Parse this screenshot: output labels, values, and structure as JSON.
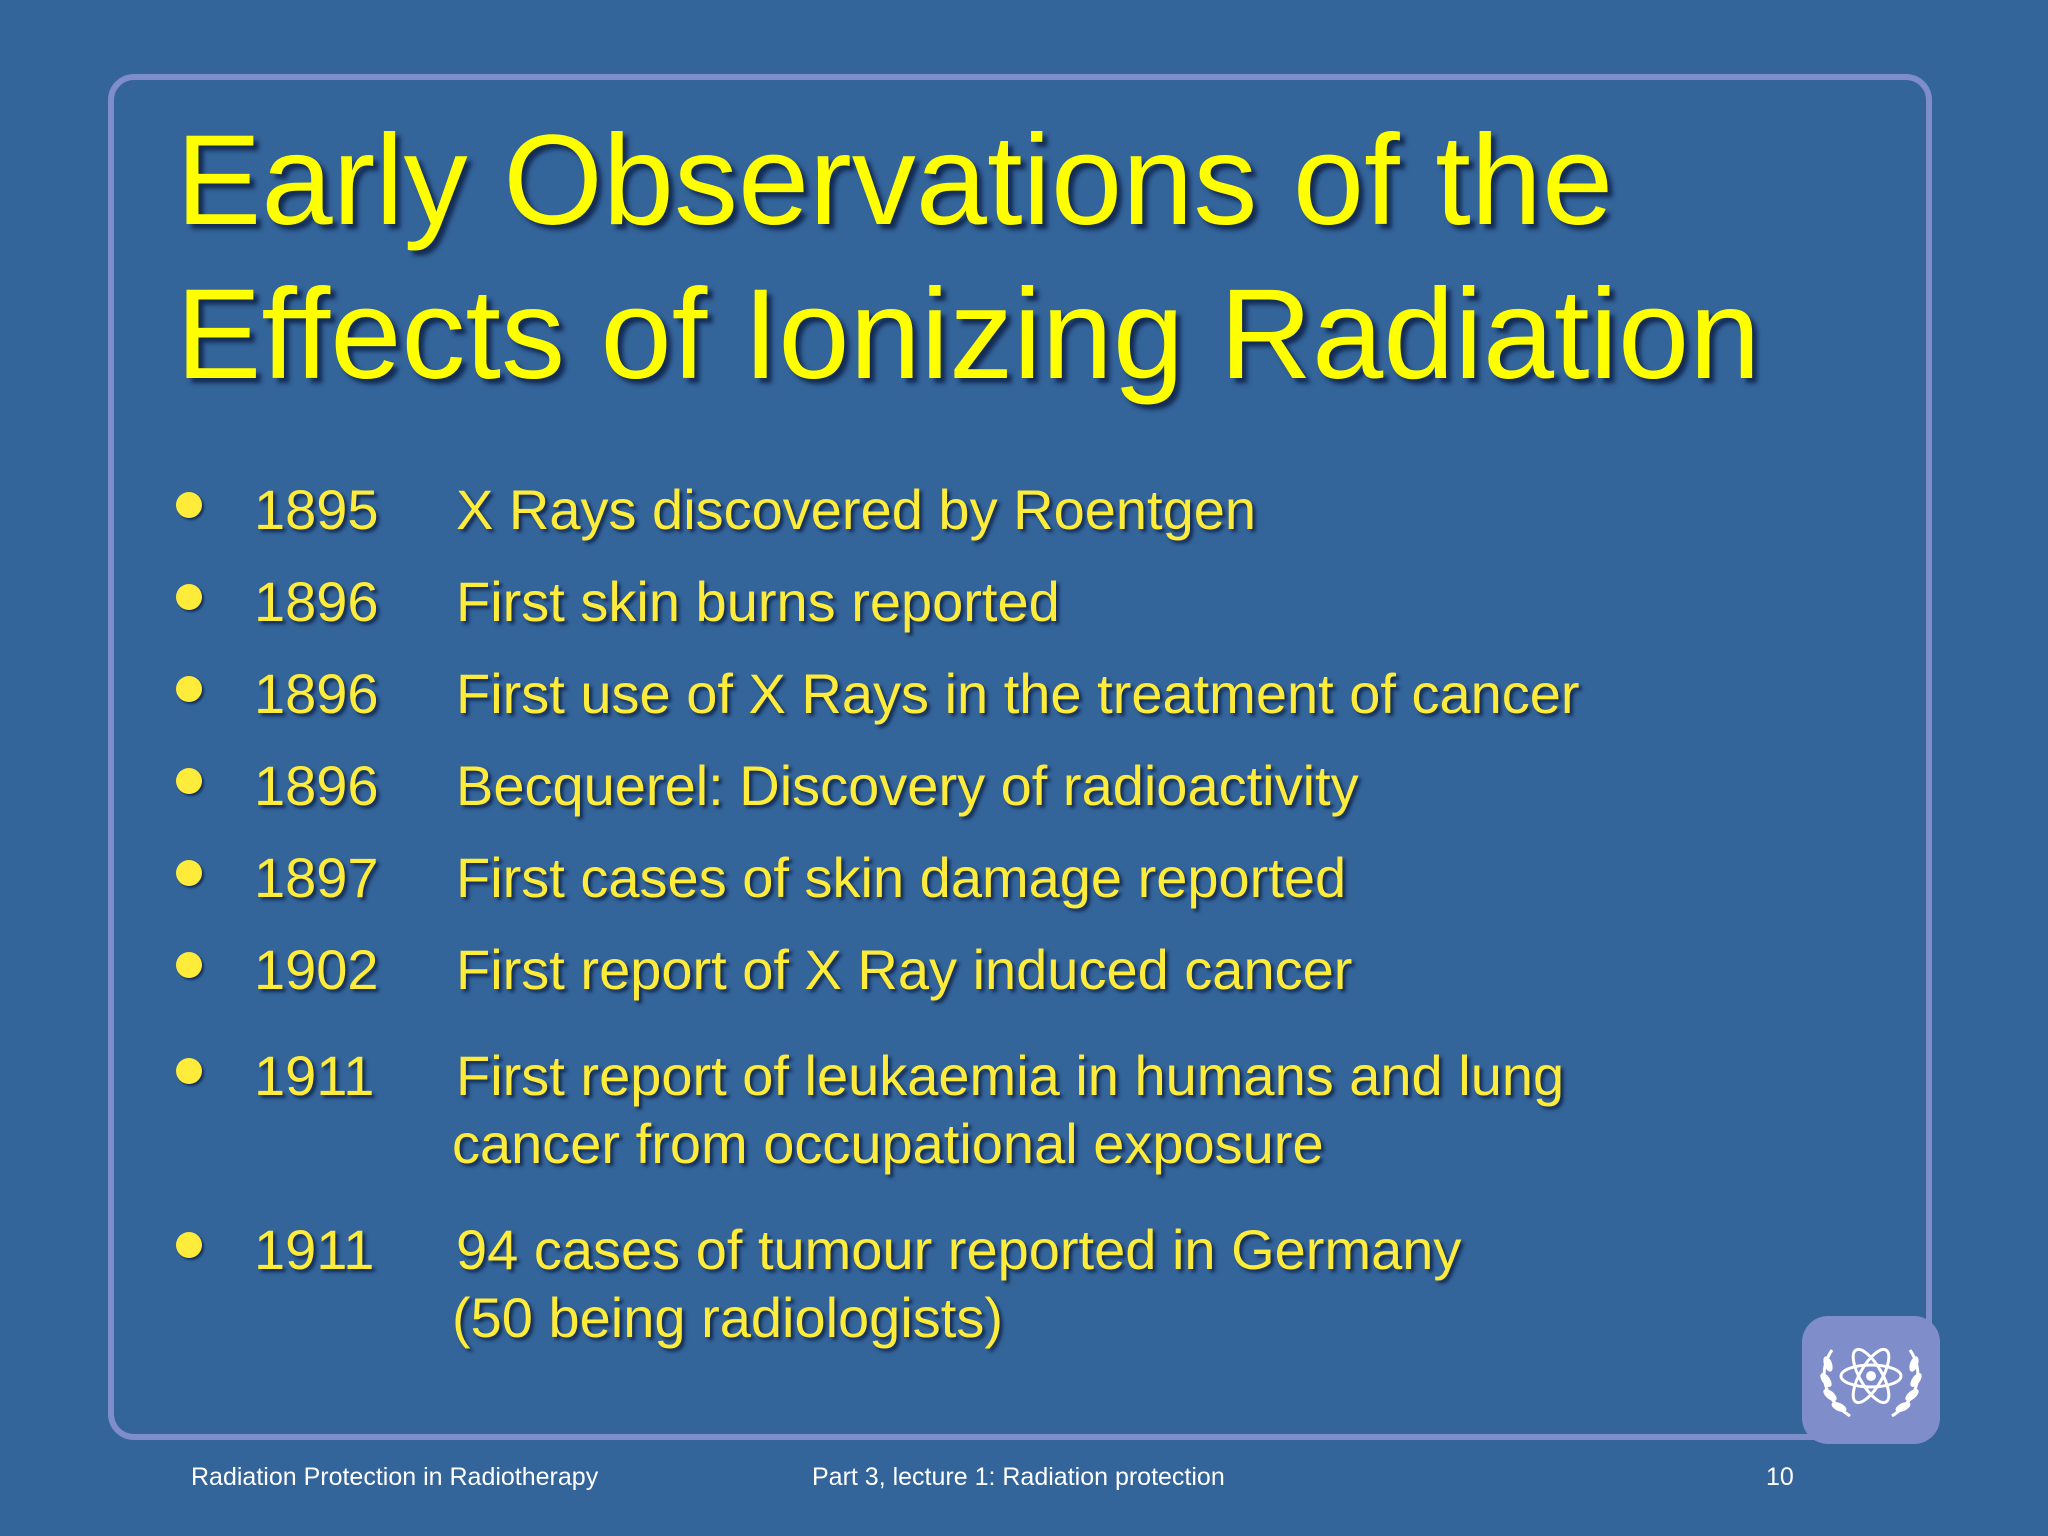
{
  "slide": {
    "title_line1": "Early Observations of the",
    "title_line2": "Effects of Ionizing Radiation",
    "items": [
      {
        "year": "1895",
        "text": "X Rays discovered by Roentgen"
      },
      {
        "year": "1896",
        "text": "First skin burns reported"
      },
      {
        "year": "1896",
        "text": "First use of X Rays in the treatment of cancer"
      },
      {
        "year": "1896",
        "text": "Becquerel: Discovery of radioactivity"
      },
      {
        "year": "1897",
        "text": "First cases of skin damage reported"
      },
      {
        "year": "1902",
        "text": "First report of X Ray induced cancer"
      },
      {
        "year": "1911",
        "text": "First report of leukaemia in humans and lung",
        "text_line2": "cancer from occupational exposure"
      },
      {
        "year": "1911",
        "text": "94 cases of tumour reported in Germany",
        "text_line2": "(50 being radiologists)"
      }
    ]
  },
  "footer": {
    "left": "Radiation Protection in Radiotherapy",
    "center": "Part 3, lecture 1: Radiation protection",
    "page_number": "10"
  },
  "logo": {
    "icon": "atom-laurel-emblem-icon"
  },
  "colors": {
    "background": "#33649a",
    "title": "#ffff00",
    "text": "#ffec3a",
    "frame": "#7f8dca",
    "footer_text": "#ffffff"
  }
}
